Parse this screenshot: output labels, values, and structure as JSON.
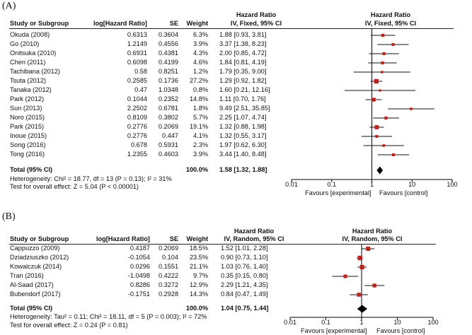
{
  "chart_data": [
    {
      "type": "forest",
      "panel_label": "(A)",
      "headers": {
        "study": "Study or Subgroup",
        "loghr": "log[Hazard Ratio]",
        "se": "SE",
        "weight": "Weight",
        "hr_title": "Hazard Ratio",
        "hr_sub": "IV, Fixed, 95% CI",
        "plot_title": "Hazard Ratio",
        "plot_sub": "IV, Fixed, 95% CI"
      },
      "studies": [
        {
          "name": "Okuda (2008)",
          "loghr": "0.6313",
          "se": "0.3604",
          "weight": "6.3%",
          "ci_text": "1.88 [0.93, 3.81]",
          "hr": 1.88,
          "lo": 0.93,
          "hi": 3.81
        },
        {
          "name": "Go (2010)",
          "loghr": "1.2149",
          "se": "0.4556",
          "weight": "3.9%",
          "ci_text": "3.37 [1.38, 8.23]",
          "hr": 3.37,
          "lo": 1.38,
          "hi": 8.23
        },
        {
          "name": "Onitsuka (2010)",
          "loghr": "0.6931",
          "se": "0.4381",
          "weight": "4.3%",
          "ci_text": "2.00 [0.85, 4.72]",
          "hr": 2.0,
          "lo": 0.85,
          "hi": 4.72
        },
        {
          "name": "Chen (2011)",
          "loghr": "0.6098",
          "se": "0.4199",
          "weight": "4.6%",
          "ci_text": "1.84 [0.81, 4.19]",
          "hr": 1.84,
          "lo": 0.81,
          "hi": 4.19
        },
        {
          "name": "Tachibana (2012)",
          "loghr": "0.58",
          "se": "0.8251",
          "weight": "1.2%",
          "ci_text": "1.79 [0.35, 9.00]",
          "hr": 1.79,
          "lo": 0.35,
          "hi": 9.0
        },
        {
          "name": "Tsuta (2012)",
          "loghr": "0.2585",
          "se": "0.1736",
          "weight": "27.2%",
          "ci_text": "1.29 [0.92, 1.82]",
          "hr": 1.29,
          "lo": 0.92,
          "hi": 1.82
        },
        {
          "name": "Tanaka (2012)",
          "loghr": "0.47",
          "se": "1.0348",
          "weight": "0.8%",
          "ci_text": "1.60 [0.21, 12.16]",
          "hr": 1.6,
          "lo": 0.21,
          "hi": 12.16
        },
        {
          "name": "Park (2012)",
          "loghr": "0.1044",
          "se": "0.2352",
          "weight": "14.8%",
          "ci_text": "1.11 [0.70, 1.76]",
          "hr": 1.11,
          "lo": 0.7,
          "hi": 1.76
        },
        {
          "name": "Sun (2013)",
          "loghr": "2.2502",
          "se": "0.6781",
          "weight": "1.8%",
          "ci_text": "9.49 [2.51, 35.85]",
          "hr": 9.49,
          "lo": 2.51,
          "hi": 35.85
        },
        {
          "name": "Noro (2015)",
          "loghr": "0.8109",
          "se": "0.3802",
          "weight": "5.7%",
          "ci_text": "2.25 [1.07, 4.74]",
          "hr": 2.25,
          "lo": 1.07,
          "hi": 4.74
        },
        {
          "name": "Park (2015)",
          "loghr": "0.2776",
          "se": "0.2069",
          "weight": "19.1%",
          "ci_text": "1.32 [0.88, 1.98]",
          "hr": 1.32,
          "lo": 0.88,
          "hi": 1.98
        },
        {
          "name": "Inoue (2015)",
          "loghr": "0.2776",
          "se": "0.447",
          "weight": "4.1%",
          "ci_text": "1.32 [0.55, 3.17]",
          "hr": 1.32,
          "lo": 0.55,
          "hi": 3.17
        },
        {
          "name": "Song (2016)",
          "loghr": "0.678",
          "se": "0.5931",
          "weight": "2.3%",
          "ci_text": "1.97 [0.62, 6.30]",
          "hr": 1.97,
          "lo": 0.62,
          "hi": 6.3
        },
        {
          "name": "Tong (2016)",
          "loghr": "1.2355",
          "se": "0.4603",
          "weight": "3.9%",
          "ci_text": "3.44 [1.40, 8.48]",
          "hr": 3.44,
          "lo": 1.4,
          "hi": 8.48
        }
      ],
      "total": {
        "label": "Total (95% CI)",
        "weight": "100.0%",
        "ci_text": "1.58 [1.32, 1.88]",
        "hr": 1.58,
        "lo": 1.32,
        "hi": 1.88
      },
      "heterogeneity": "Heterogeneity: Chi² = 18.77, df = 13 (P = 0.13); I² = 31%",
      "overall_effect": "Test for overall effect: Z = 5.04 (P < 0.00001)",
      "axis": {
        "ticks": [
          0.01,
          0.1,
          1,
          10,
          100
        ],
        "tick_labels": [
          "0.01",
          "0.1",
          "1",
          "10",
          "100"
        ],
        "xlim": [
          0.01,
          100
        ],
        "scale": "log"
      },
      "favours_left": "Favours [experimental]",
      "favours_right": "Favours [control]"
    },
    {
      "type": "forest",
      "panel_label": "(B)",
      "headers": {
        "study": "Study or Subgroup",
        "loghr": "log[Hazard Ratio]",
        "se": "SE",
        "weight": "Weight",
        "hr_title": "Hazard Ratio",
        "hr_sub": "IV, Random, 95% CI",
        "plot_title": "Hazard Ratio",
        "plot_sub": "IV, Random, 95% CI"
      },
      "studies": [
        {
          "name": "Cappuzzo (2009)",
          "loghr": "0.4187",
          "se": "0.2069",
          "weight": "18.5%",
          "ci_text": "1.52 [1.01, 2.28]",
          "hr": 1.52,
          "lo": 1.01,
          "hi": 2.28
        },
        {
          "name": "Dziadziuszko (2012)",
          "loghr": "-0.1054",
          "se": "0.104",
          "weight": "23.5%",
          "ci_text": "0.90 [0.73, 1.10]",
          "hr": 0.9,
          "lo": 0.73,
          "hi": 1.1
        },
        {
          "name": "Kowalczuk (2014)",
          "loghr": "0.0296",
          "se": "0.1551",
          "weight": "21.1%",
          "ci_text": "1.03 [0.76, 1.40]",
          "hr": 1.03,
          "lo": 0.76,
          "hi": 1.4
        },
        {
          "name": "Tran (2016)",
          "loghr": "-1.0498",
          "se": "0.4222",
          "weight": "9.7%",
          "ci_text": "0.35 [0.15, 0.80]",
          "hr": 0.35,
          "lo": 0.15,
          "hi": 0.8
        },
        {
          "name": "Al-Saad (2017)",
          "loghr": "0.8286",
          "se": "0.3272",
          "weight": "12.9%",
          "ci_text": "2.29 [1.21, 4.35]",
          "hr": 2.29,
          "lo": 1.21,
          "hi": 4.35
        },
        {
          "name": "Bubendorf (2017)",
          "loghr": "-0.1751",
          "se": "0.2928",
          "weight": "14.3%",
          "ci_text": "0.84 [0.47, 1.49]",
          "hr": 0.84,
          "lo": 0.47,
          "hi": 1.49
        }
      ],
      "total": {
        "label": "Total (95% CI)",
        "weight": "100.0%",
        "ci_text": "1.04 [0.75, 1.44]",
        "hr": 1.04,
        "lo": 0.75,
        "hi": 1.44
      },
      "heterogeneity": "Heterogeneity: Tau² = 0.11; Chi² = 18.11, df = 5 (P = 0.003); I² = 72%",
      "overall_effect": "Test for overall effect: Z = 0.24 (P = 0.81)",
      "axis": {
        "ticks": [
          0.01,
          0.1,
          1,
          10,
          100
        ],
        "tick_labels": [
          "0.01",
          "0.1",
          "1",
          "10",
          "100"
        ],
        "xlim": [
          0.01,
          100
        ],
        "scale": "log"
      },
      "favours_left": "Favours [experimental]",
      "favours_right": "Favours [control]"
    }
  ]
}
